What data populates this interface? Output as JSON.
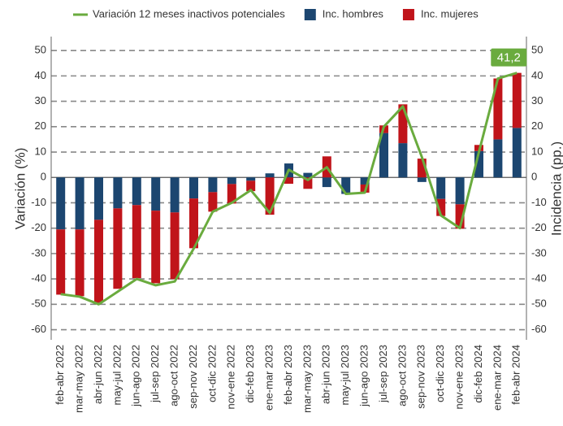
{
  "chart_data": {
    "type": "bar-line",
    "y_label": "Variación (%)",
    "y2_label": "Incidencia (pp.)",
    "categories": [
      "feb-abr 2022",
      "mar-may 2022",
      "abr-jun 2022",
      "may-jul 2022",
      "jun-ago 2022",
      "jul-sep 2022",
      "ago-oct 2022",
      "sep-nov 2022",
      "oct-dic 2022",
      "nov-ene 2022",
      "dic-feb 2023",
      "ene-mar 2023",
      "feb-abr 2023",
      "mar-may 2023",
      "abr-jun 2023",
      "may-jul 2023",
      "jun-ago 2023",
      "jul-sep 2023",
      "ago-oct 2023",
      "sep-nov 2023",
      "oct-dic 2023",
      "nov-ene 2023",
      "dic-feb 2024",
      "ene-mar 2024",
      "feb-abr 2024"
    ],
    "series": [
      {
        "name": "Variación 12 meses inactivos potenciales",
        "type": "line",
        "color": "#6aab3e",
        "values": [
          -46,
          -47,
          -50,
          -45,
          -40,
          -42.5,
          -41,
          -28,
          -13.5,
          -10,
          -5,
          -14,
          3,
          -1,
          4,
          -6.5,
          -6,
          20,
          28,
          8,
          -15,
          -20,
          10,
          39,
          41.2
        ],
        "value_labels": [
          null,
          null,
          null,
          null,
          null,
          null,
          null,
          null,
          null,
          null,
          null,
          null,
          null,
          null,
          null,
          null,
          null,
          null,
          null,
          null,
          null,
          null,
          null,
          null,
          "41,2"
        ]
      },
      {
        "name": "Inc. hombres",
        "type": "bar",
        "axis": "y2",
        "color": "#1c4670",
        "values": [
          -20.5,
          -20.5,
          -16.7,
          -12.2,
          -10.9,
          -13.1,
          -13.8,
          -8.3,
          -5.8,
          -2.6,
          -1.3,
          1.6,
          5.5,
          1.8,
          -3.8,
          -6.5,
          -2.8,
          17.5,
          13.5,
          -1.8,
          -8.5,
          -10.6,
          10.4,
          15,
          19.5
        ]
      },
      {
        "name": "Inc. mujeres",
        "type": "bar",
        "axis": "y2",
        "color": "#c0141a",
        "values": [
          -25.7,
          -26.3,
          -32.7,
          -31.7,
          -28.8,
          -28.6,
          -26.3,
          -19.6,
          -7.7,
          -7.7,
          -4.1,
          -14.7,
          -2.5,
          -4.5,
          8.3,
          0,
          -3.2,
          3,
          15.3,
          7.4,
          -6.7,
          -9.6,
          2.4,
          24,
          21.7
        ]
      }
    ],
    "ylim": [
      -64,
      55.5
    ],
    "yticks": [
      -60,
      -50,
      -40,
      -30,
      -20,
      -10,
      0,
      10,
      20,
      30,
      40,
      50
    ],
    "y2lim": [
      -64,
      55.5
    ],
    "y2ticks": [
      -60,
      -50,
      -40,
      -30,
      -20,
      -10,
      0,
      10,
      20,
      30,
      40,
      50
    ],
    "grid": true,
    "legend": "top"
  }
}
